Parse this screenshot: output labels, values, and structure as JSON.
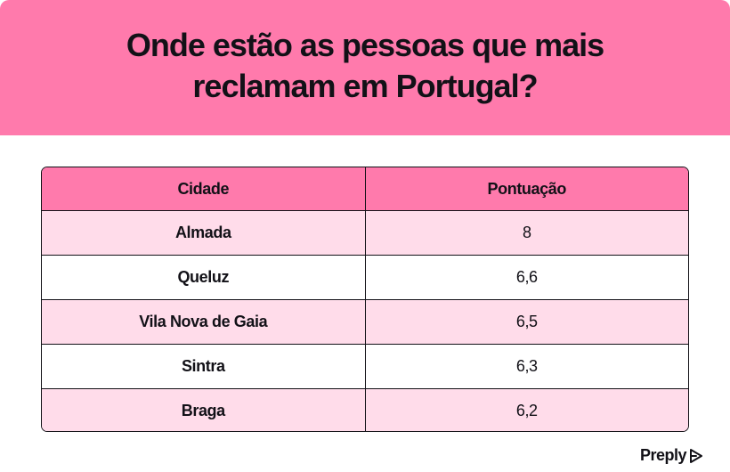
{
  "header": {
    "title_line1": "Onde estão as pessoas que mais",
    "title_line2": "reclamam em Portugal?",
    "background_color": "#ff7aac"
  },
  "table": {
    "columns": [
      "Cidade",
      "Pontuação"
    ],
    "rows": [
      {
        "city": "Almada",
        "score": "8"
      },
      {
        "city": "Queluz",
        "score": "6,6"
      },
      {
        "city": "Vila Nova de Gaia",
        "score": "6,5"
      },
      {
        "city": "Sintra",
        "score": "6,3"
      },
      {
        "city": "Braga",
        "score": "6,2"
      }
    ],
    "header_color": "#ff7aac",
    "stripe_color": "#ffdcea"
  },
  "brand": {
    "name": "Preply",
    "icon": "preply-logo-icon"
  }
}
